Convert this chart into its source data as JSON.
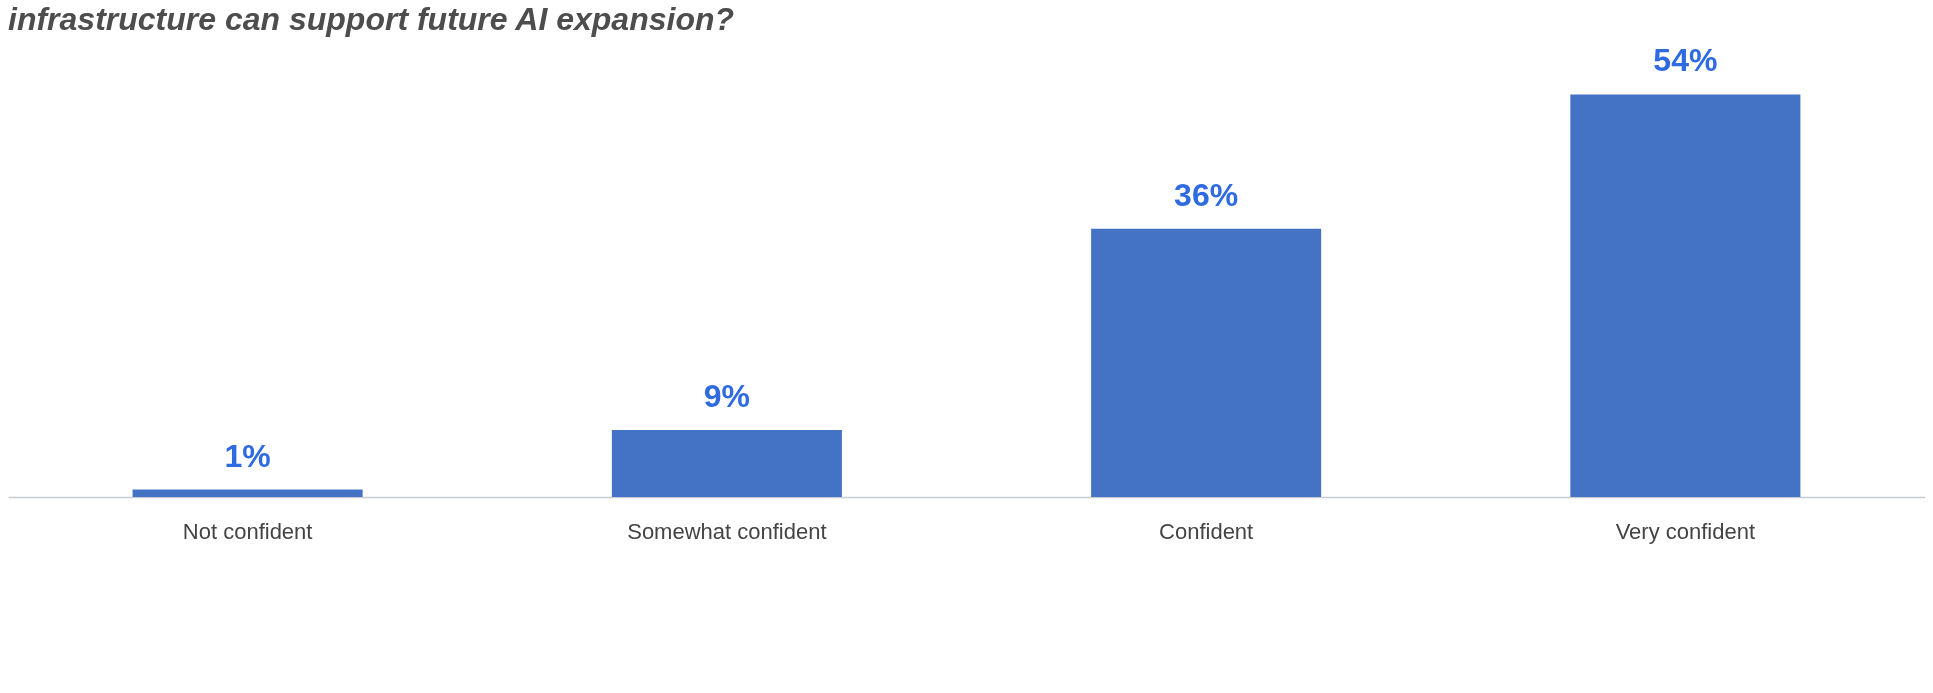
{
  "chart_data": {
    "type": "bar",
    "title": "infrastructure can support future AI expansion?",
    "categories": [
      "Not confident",
      "Somewhat confident",
      "Confident",
      "Very confident"
    ],
    "values": [
      1,
      9,
      36,
      54
    ],
    "color": "#4472c4",
    "value_labels": [
      "1%",
      "9%",
      "36%",
      "54%"
    ],
    "grid": false
  }
}
